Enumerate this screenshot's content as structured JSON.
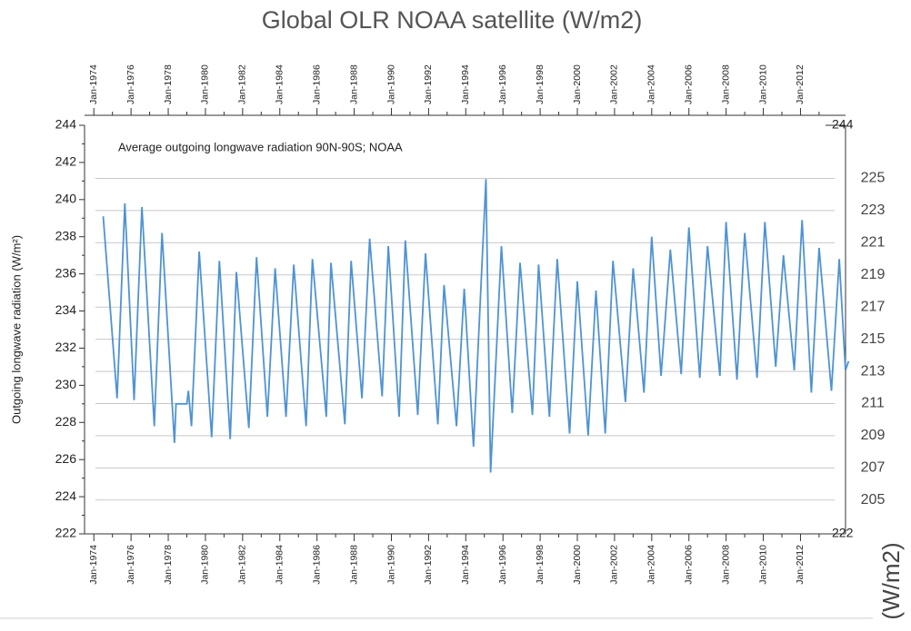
{
  "chart_data": {
    "type": "line",
    "title": "Global OLR NOAA satellite (W/m2)",
    "annotation": "Average outgoing longwave radiation 90N-90S; NOAA",
    "y_label": "Outgoing longwave radiation (W/m²)",
    "y2_label": "(W/m2)",
    "color": "#4f93d2",
    "grid": true,
    "x": [
      "1974-07",
      "1975-04",
      "1975-09",
      "1976-03",
      "1976-08",
      "1977-04",
      "1977-09",
      "1978-05",
      "1978-06",
      "1979-01",
      "1979-02",
      "1979-04",
      "1979-09",
      "1980-05",
      "1980-10",
      "1981-05",
      "1981-09",
      "1982-05",
      "1982-10",
      "1983-05",
      "1983-10",
      "1984-05",
      "1984-10",
      "1985-06",
      "1985-10",
      "1986-07",
      "1986-10",
      "1987-07",
      "1987-11",
      "1988-06",
      "1988-11",
      "1989-07",
      "1989-11",
      "1990-06",
      "1990-10",
      "1991-06",
      "1991-11",
      "1992-07",
      "1992-11",
      "1993-07",
      "1993-12",
      "1994-06",
      "1995-02",
      "1995-05",
      "1995-12",
      "1996-07",
      "1996-12",
      "1997-08",
      "1997-12",
      "1998-07",
      "1998-12",
      "1999-08",
      "2000-01",
      "2000-08",
      "2001-01",
      "2001-07",
      "2001-12",
      "2002-08",
      "2003-01",
      "2003-08",
      "2004-01",
      "2004-07",
      "2005-01",
      "2005-08",
      "2006-01",
      "2006-08",
      "2007-01",
      "2007-09",
      "2008-01",
      "2008-08",
      "2009-01",
      "2009-09",
      "2010-02",
      "2010-09",
      "2011-02",
      "2011-09",
      "2012-02",
      "2012-08",
      "2013-01",
      "2013-09",
      "2014-02",
      "2014-06",
      "2014-08"
    ],
    "values": [
      239.1,
      229.3,
      239.8,
      229.2,
      239.6,
      227.8,
      238.2,
      226.9,
      229,
      229,
      229.7,
      227.8,
      237.2,
      227.2,
      236.7,
      227.1,
      236.1,
      227.7,
      236.9,
      228.3,
      236.3,
      228.3,
      236.5,
      227.8,
      236.8,
      228.3,
      236.6,
      227.9,
      236.7,
      229.3,
      237.9,
      229.4,
      237.5,
      228.3,
      237.8,
      228.4,
      237.1,
      227.9,
      235.4,
      227.8,
      235.2,
      226.7,
      241.1,
      225.3,
      237.5,
      228.5,
      236.6,
      228.4,
      236.5,
      228.3,
      236.8,
      227.4,
      235.6,
      227.3,
      235.1,
      227.4,
      236.7,
      229.1,
      236.3,
      229.6,
      238.0,
      230.5,
      237.3,
      230.6,
      238.5,
      230.4,
      237.5,
      230.5,
      238.8,
      230.3,
      238.2,
      230.4,
      238.8,
      231.0,
      237.0,
      230.8,
      238.9,
      229.6,
      237.4,
      229.7,
      236.8,
      230.8,
      231.3
    ],
    "xlim": [
      "1973-07",
      "2014-09"
    ],
    "xticks": [
      {
        "value": "1974-01",
        "label": "Jan-1974"
      },
      {
        "value": "1976-01",
        "label": "Jan-1976"
      },
      {
        "value": "1978-01",
        "label": "Jan-1978"
      },
      {
        "value": "1980-01",
        "label": "Jan-1980"
      },
      {
        "value": "1982-01",
        "label": "Jan-1982"
      },
      {
        "value": "1984-01",
        "label": "Jan-1984"
      },
      {
        "value": "1986-01",
        "label": "Jan-1986"
      },
      {
        "value": "1988-01",
        "label": "Jan-1988"
      },
      {
        "value": "1990-01",
        "label": "Jan-1990"
      },
      {
        "value": "1992-01",
        "label": "Jan-1992"
      },
      {
        "value": "1994-01",
        "label": "Jan-1994"
      },
      {
        "value": "1996-01",
        "label": "Jan-1996"
      },
      {
        "value": "1998-01",
        "label": "Jan-1998"
      },
      {
        "value": "2000-01",
        "label": "Jan-2000"
      },
      {
        "value": "2002-01",
        "label": "Jan-2002"
      },
      {
        "value": "2004-01",
        "label": "Jan-2004"
      },
      {
        "value": "2006-01",
        "label": "Jan-2006"
      },
      {
        "value": "2008-01",
        "label": "Jan-2008"
      },
      {
        "value": "2010-01",
        "label": "Jan-2010"
      },
      {
        "value": "2012-01",
        "label": "Jan-2012"
      }
    ],
    "ylim": [
      222,
      244
    ],
    "yticks": [
      222,
      224,
      226,
      228,
      230,
      232,
      234,
      236,
      238,
      240,
      242,
      244
    ],
    "y2lim": [
      202.9,
      228.3
    ],
    "y2ticks": [
      205,
      207,
      209,
      211,
      213,
      215,
      217,
      219,
      221,
      223,
      225
    ]
  }
}
